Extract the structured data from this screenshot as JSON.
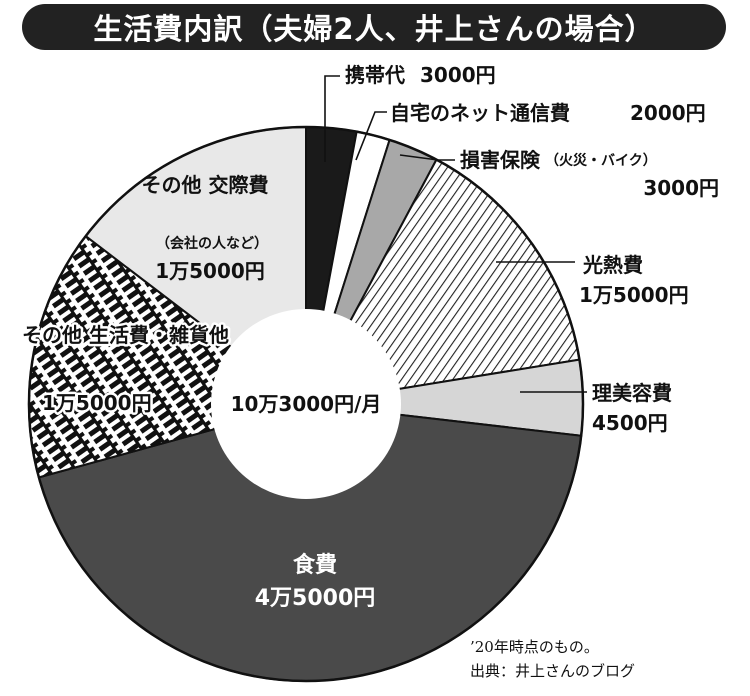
{
  "title": "生活費内訳（夫婦2人、井上さんの場合）",
  "chart_data": {
    "type": "pie",
    "variant": "donut",
    "center_label": "10万3000円/月",
    "total": 103000,
    "unit": "円",
    "slices": [
      {
        "label": "携帯代",
        "amount_text": "3000円",
        "value": 3000,
        "fill": "#1a1a1a",
        "pattern": "solid"
      },
      {
        "label": "自宅のネット通信費",
        "amount_text": "2000円",
        "value": 2000,
        "fill": "#ffffff",
        "pattern": "solid"
      },
      {
        "label": "損害保険",
        "sub": "（火災・バイク）",
        "amount_text": "3000円",
        "value": 3000,
        "fill": "#a8a8a8",
        "pattern": "solid"
      },
      {
        "label": "光熱費",
        "amount_text": "1万5000円",
        "value": 15000,
        "fill": "#ffffff",
        "pattern": "diagonal-lines"
      },
      {
        "label": "理美容費",
        "amount_text": "4500円",
        "value": 4500,
        "fill": "#d6d6d6",
        "pattern": "solid"
      },
      {
        "label": "食費",
        "amount_text": "4万5000円",
        "value": 45000,
        "fill": "#4a4a4a",
        "pattern": "solid"
      },
      {
        "label": "その他 生活費・雑貨他",
        "amount_text": "1万5000円",
        "value": 15000,
        "fill": "#ffffff",
        "pattern": "dashed-black"
      },
      {
        "label": "その他 交際費",
        "sub": "（会社の人など）",
        "amount_text": "1万5000円",
        "value": 15000,
        "fill": "#e8e8e8",
        "pattern": "solid"
      }
    ]
  },
  "notes": [
    "’20年時点のもの。",
    "出典：井上さんのブログ"
  ]
}
